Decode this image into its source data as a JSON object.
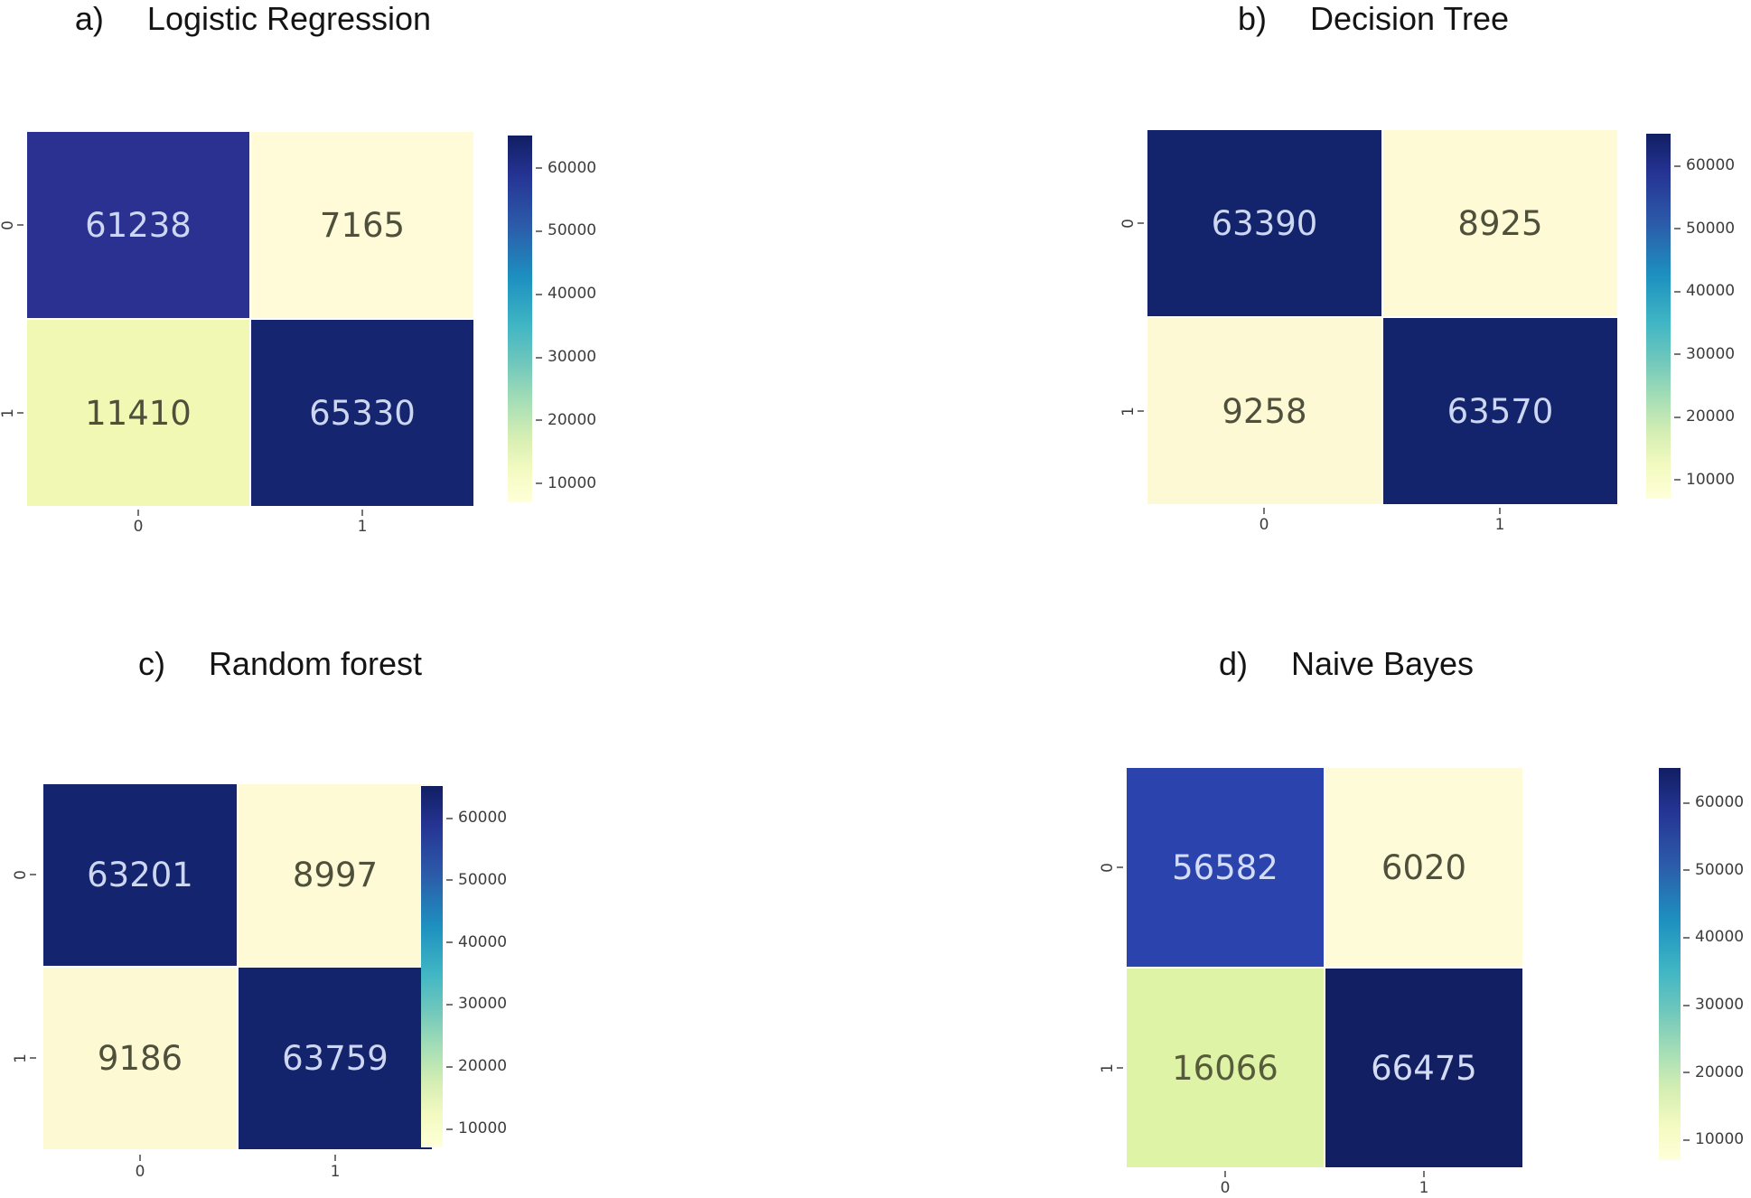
{
  "colorbar_ticks": [
    "60000",
    "50000",
    "40000",
    "30000",
    "20000",
    "10000"
  ],
  "panels": [
    {
      "label": "a)",
      "title": "Logistic Regression",
      "y_ticks": [
        "0",
        "1"
      ],
      "x_ticks": [
        "0",
        "1"
      ],
      "cells": [
        {
          "value": "61238",
          "style": "background:#2a3190;color:#cdd7f1"
        },
        {
          "value": "7165",
          "style": "background:#fffbd9;color:#4f503b"
        },
        {
          "value": "11410",
          "style": "background:#f1f8b4;color:#4f503b"
        },
        {
          "value": "65330",
          "style": "background:#16256f;color:#cdd7f1"
        }
      ]
    },
    {
      "label": "b)",
      "title": "Decision Tree",
      "y_ticks": [
        "0",
        "1"
      ],
      "x_ticks": [
        "0",
        "1"
      ],
      "cells": [
        {
          "value": "63390",
          "style": "background:#13246d;color:#cdd7f1"
        },
        {
          "value": "8925",
          "style": "background:#fefad6;color:#4f503b"
        },
        {
          "value": "9258",
          "style": "background:#fdf9d4;color:#4f503b"
        },
        {
          "value": "63570",
          "style": "background:#13246d;color:#cdd7f1"
        }
      ]
    },
    {
      "label": "c)",
      "title": "Random forest",
      "y_ticks": [
        "0",
        "1"
      ],
      "x_ticks": [
        "0",
        "1"
      ],
      "cells": [
        {
          "value": "63201",
          "style": "background:#14246e;color:#cdd7f1"
        },
        {
          "value": "8997",
          "style": "background:#fefad6;color:#4f503b"
        },
        {
          "value": "9186",
          "style": "background:#fdf9d2;color:#4f503b"
        },
        {
          "value": "63759",
          "style": "background:#13236c;color:#cdd7f1"
        }
      ]
    },
    {
      "label": "d)",
      "title": "Naive Bayes",
      "y_ticks": [
        "0",
        "1"
      ],
      "x_ticks": [
        "0",
        "1"
      ],
      "cells": [
        {
          "value": "56582",
          "style": "background:#2b44ad;color:#d3dcf4"
        },
        {
          "value": "6020",
          "style": "background:#fefbd9;color:#4f503b"
        },
        {
          "value": "16066",
          "style": "background:#dff3a6;color:#565c3b"
        },
        {
          "value": "66475",
          "style": "background:#121f63;color:#d3dcf4"
        }
      ]
    }
  ],
  "chart_data": [
    {
      "type": "heatmap",
      "title": "a) Logistic Regression",
      "x_labels": [
        "0",
        "1"
      ],
      "y_labels": [
        "0",
        "1"
      ],
      "values": [
        [
          61238,
          7165
        ],
        [
          11410,
          65330
        ]
      ],
      "colormap": "YlGnBu",
      "colorbar_ticks": [
        10000,
        20000,
        30000,
        40000,
        50000,
        60000
      ],
      "legend_position": "right"
    },
    {
      "type": "heatmap",
      "title": "b) Decision Tree",
      "x_labels": [
        "0",
        "1"
      ],
      "y_labels": [
        "0",
        "1"
      ],
      "values": [
        [
          63390,
          8925
        ],
        [
          9258,
          63570
        ]
      ],
      "colormap": "YlGnBu",
      "colorbar_ticks": [
        10000,
        20000,
        30000,
        40000,
        50000,
        60000
      ],
      "legend_position": "right"
    },
    {
      "type": "heatmap",
      "title": "c) Random forest",
      "x_labels": [
        "0",
        "1"
      ],
      "y_labels": [
        "0",
        "1"
      ],
      "values": [
        [
          63201,
          8997
        ],
        [
          9186,
          63759
        ]
      ],
      "colormap": "YlGnBu",
      "colorbar_ticks": [
        10000,
        20000,
        30000,
        40000,
        50000,
        60000
      ],
      "legend_position": "right"
    },
    {
      "type": "heatmap",
      "title": "d) Naive Bayes",
      "x_labels": [
        "0",
        "1"
      ],
      "y_labels": [
        "0",
        "1"
      ],
      "values": [
        [
          56582,
          6020
        ],
        [
          16066,
          66475
        ]
      ],
      "colormap": "YlGnBu",
      "colorbar_ticks": [
        10000,
        20000,
        30000,
        40000,
        50000,
        60000
      ],
      "legend_position": "right"
    }
  ]
}
